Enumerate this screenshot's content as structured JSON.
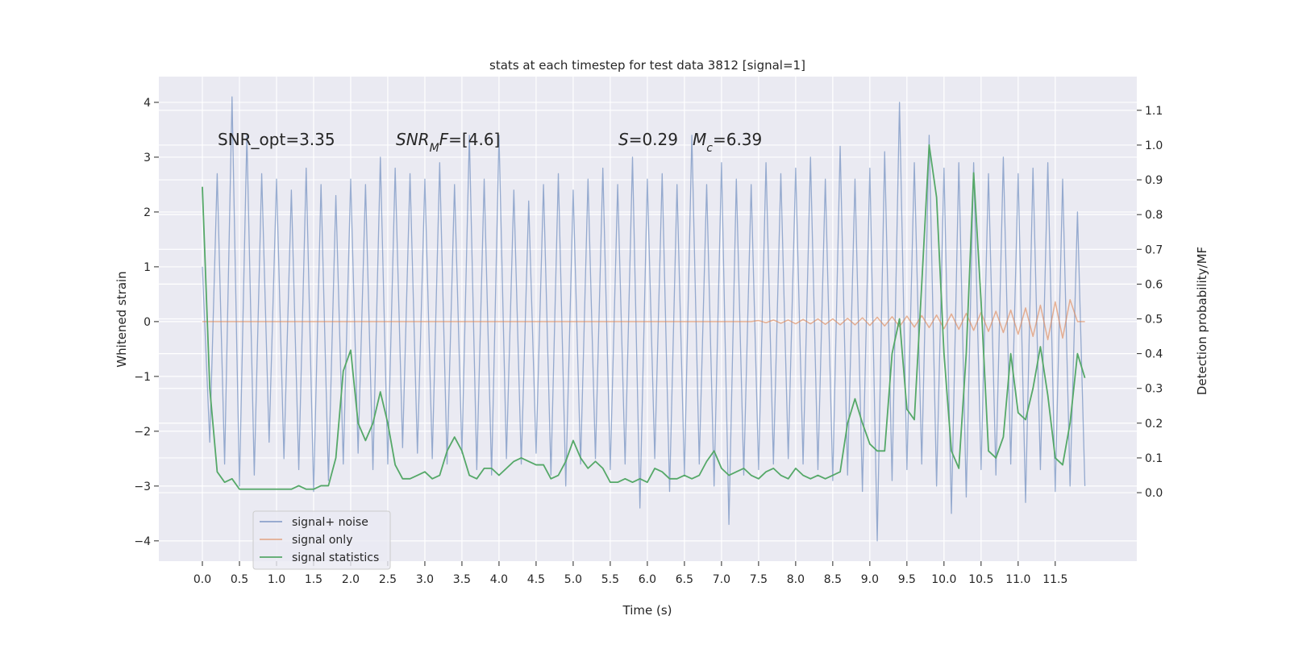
{
  "chart_data": {
    "type": "line",
    "title": "stats at each timestep for test data 3812 [signal=1]",
    "x_label": "Time (s)",
    "y_label": "Whitened strain",
    "y2_label": "Detection probability/MF",
    "annotations": [
      [
        {
          "text": "SNR_opt=3.35",
          "style": "normal"
        }
      ],
      [
        {
          "text": "SNR",
          "style": "italic"
        },
        {
          "text": "M",
          "style": "sub"
        },
        {
          "text": "F",
          "style": "italic"
        },
        {
          "text": "=[4.6]",
          "style": "normal"
        }
      ],
      [
        {
          "text": "S",
          "style": "italic"
        },
        {
          "text": "=0.29",
          "style": "normal"
        }
      ],
      [
        {
          "text": "M",
          "style": "italic"
        },
        {
          "text": "c",
          "style": "sub"
        },
        {
          "text": "=6.39",
          "style": "normal"
        }
      ]
    ],
    "x": [
      0.0,
      0.1,
      0.2,
      0.3,
      0.4,
      0.5,
      0.6,
      0.7,
      0.8,
      0.9,
      1.0,
      1.1,
      1.2,
      1.3,
      1.4,
      1.5,
      1.6,
      1.7,
      1.8,
      1.9,
      2.0,
      2.1,
      2.2,
      2.3,
      2.4,
      2.5,
      2.6,
      2.7,
      2.8,
      2.9,
      3.0,
      3.1,
      3.2,
      3.3,
      3.4,
      3.5,
      3.6,
      3.7,
      3.8,
      3.9,
      4.0,
      4.1,
      4.2,
      4.3,
      4.4,
      4.5,
      4.6,
      4.7,
      4.8,
      4.9,
      5.0,
      5.1,
      5.2,
      5.3,
      5.4,
      5.5,
      5.6,
      5.7,
      5.8,
      5.9,
      6.0,
      6.1,
      6.2,
      6.3,
      6.4,
      6.5,
      6.6,
      6.7,
      6.8,
      6.9,
      7.0,
      7.1,
      7.2,
      7.3,
      7.4,
      7.5,
      7.6,
      7.7,
      7.8,
      7.9,
      8.0,
      8.1,
      8.2,
      8.3,
      8.4,
      8.5,
      8.6,
      8.7,
      8.8,
      8.9,
      9.0,
      9.1,
      9.2,
      9.3,
      9.4,
      9.5,
      9.6,
      9.7,
      9.8,
      9.9,
      10.0,
      10.1,
      10.2,
      10.3,
      10.4,
      10.5,
      10.6,
      10.7,
      10.8,
      10.9,
      11.0,
      11.1,
      11.2,
      11.3,
      11.4,
      11.5,
      11.6,
      11.7,
      11.8,
      11.9
    ],
    "series": [
      {
        "name": "signal+ noise",
        "color": "#4c72b0",
        "axis": "y",
        "values": [
          1.0,
          -2.2,
          2.7,
          -2.6,
          4.1,
          -3.0,
          3.4,
          -2.8,
          2.7,
          -2.2,
          2.6,
          -2.5,
          2.4,
          -2.7,
          2.8,
          -3.1,
          2.5,
          -2.9,
          2.3,
          -2.6,
          2.6,
          -2.4,
          2.5,
          -2.7,
          3.0,
          -2.6,
          2.8,
          -2.3,
          2.7,
          -2.4,
          2.6,
          -2.5,
          2.9,
          -2.6,
          2.5,
          -2.4,
          3.4,
          -2.7,
          2.6,
          -2.8,
          3.4,
          -2.5,
          2.4,
          -2.6,
          2.2,
          -2.4,
          2.5,
          -2.8,
          2.7,
          -3.0,
          2.4,
          -2.6,
          2.6,
          -2.5,
          2.8,
          -2.7,
          2.5,
          -2.6,
          3.0,
          -3.4,
          2.6,
          -2.5,
          2.7,
          -3.1,
          2.5,
          -2.8,
          3.4,
          -2.6,
          2.5,
          -3.0,
          2.9,
          -3.7,
          2.6,
          -2.8,
          2.5,
          -2.7,
          2.9,
          -2.6,
          2.7,
          -2.5,
          2.8,
          -2.6,
          3.0,
          -2.7,
          2.6,
          -2.9,
          3.2,
          -2.8,
          2.6,
          -3.1,
          2.8,
          -4.0,
          3.1,
          -2.9,
          4.0,
          -2.7,
          2.9,
          -2.6,
          3.4,
          -3.0,
          2.8,
          -3.5,
          2.9,
          -3.2,
          2.9,
          -2.7,
          2.7,
          -2.8,
          3.0,
          -2.6,
          2.7,
          -3.3,
          2.8,
          -2.7,
          2.9,
          -3.1,
          2.6,
          -3.0,
          2.0,
          -3.0
        ]
      },
      {
        "name": "signal only",
        "color": "#dd8452",
        "axis": "y",
        "values": [
          0,
          0,
          0,
          0,
          0,
          0,
          0,
          0,
          0,
          0,
          0,
          0,
          0,
          0,
          0,
          0,
          0,
          0,
          0,
          0,
          0,
          0,
          0,
          0,
          0,
          0,
          0,
          0,
          0,
          0,
          0,
          0,
          0,
          0,
          0,
          0,
          0,
          0,
          0,
          0,
          0,
          0,
          0,
          0,
          0,
          0,
          0,
          0,
          0,
          0,
          0,
          0,
          0,
          0,
          0,
          0,
          0,
          0,
          0,
          0,
          0,
          0,
          0,
          0,
          0,
          0,
          0,
          0,
          0,
          0,
          0,
          0,
          0,
          0,
          0,
          0.02,
          -0.02,
          0.03,
          -0.03,
          0.03,
          -0.04,
          0.04,
          -0.04,
          0.05,
          -0.05,
          0.05,
          -0.06,
          0.06,
          -0.06,
          0.07,
          -0.07,
          0.08,
          -0.08,
          0.09,
          -0.09,
          0.1,
          -0.1,
          0.11,
          -0.11,
          0.12,
          -0.13,
          0.14,
          -0.14,
          0.15,
          -0.16,
          0.17,
          -0.18,
          0.19,
          -0.2,
          0.21,
          -0.23,
          0.25,
          -0.27,
          0.3,
          -0.33,
          0.36,
          -0.3,
          0.4,
          0,
          0
        ]
      },
      {
        "name": "signal statistics",
        "color": "#55a868",
        "axis": "y2",
        "values": [
          0.88,
          0.3,
          0.06,
          0.03,
          0.04,
          0.01,
          0.01,
          0.01,
          0.01,
          0.01,
          0.01,
          0.01,
          0.01,
          0.02,
          0.01,
          0.01,
          0.02,
          0.02,
          0.1,
          0.35,
          0.41,
          0.2,
          0.15,
          0.2,
          0.29,
          0.2,
          0.08,
          0.04,
          0.04,
          0.05,
          0.06,
          0.04,
          0.05,
          0.12,
          0.16,
          0.12,
          0.05,
          0.04,
          0.07,
          0.07,
          0.05,
          0.07,
          0.09,
          0.1,
          0.09,
          0.08,
          0.08,
          0.04,
          0.05,
          0.09,
          0.15,
          0.1,
          0.07,
          0.09,
          0.07,
          0.03,
          0.03,
          0.04,
          0.03,
          0.04,
          0.03,
          0.07,
          0.06,
          0.04,
          0.04,
          0.05,
          0.04,
          0.05,
          0.09,
          0.12,
          0.07,
          0.05,
          0.06,
          0.07,
          0.05,
          0.04,
          0.06,
          0.07,
          0.05,
          0.04,
          0.07,
          0.05,
          0.04,
          0.05,
          0.04,
          0.05,
          0.06,
          0.2,
          0.27,
          0.2,
          0.14,
          0.12,
          0.12,
          0.4,
          0.5,
          0.24,
          0.21,
          0.6,
          1.0,
          0.85,
          0.4,
          0.12,
          0.07,
          0.4,
          0.92,
          0.55,
          0.12,
          0.1,
          0.16,
          0.4,
          0.23,
          0.21,
          0.3,
          0.42,
          0.28,
          0.1,
          0.08,
          0.2,
          0.4,
          0.33
        ]
      }
    ],
    "xlim": [
      -0.587,
      12.6
    ],
    "xticks": [
      {
        "value": 0,
        "label": "0.0"
      },
      {
        "value": 0.5,
        "label": "0.5"
      },
      {
        "value": 1,
        "label": "1.0"
      },
      {
        "value": 1.5,
        "label": "1.5"
      },
      {
        "value": 2,
        "label": "2.0"
      },
      {
        "value": 2.5,
        "label": "2.5"
      },
      {
        "value": 3,
        "label": "3.0"
      },
      {
        "value": 3.5,
        "label": "3.5"
      },
      {
        "value": 4,
        "label": "4.0"
      },
      {
        "value": 4.5,
        "label": "4.5"
      },
      {
        "value": 5,
        "label": "5.0"
      },
      {
        "value": 5.5,
        "label": "5.5"
      },
      {
        "value": 6,
        "label": "6.0"
      },
      {
        "value": 6.5,
        "label": "6.5"
      },
      {
        "value": 7,
        "label": "7.0"
      },
      {
        "value": 7.5,
        "label": "7.5"
      },
      {
        "value": 8,
        "label": "8.0"
      },
      {
        "value": 8.5,
        "label": "8.5"
      },
      {
        "value": 9,
        "label": "9.0"
      },
      {
        "value": 9.5,
        "label": "9.5"
      },
      {
        "value": 10,
        "label": "10.0"
      },
      {
        "value": 10.5,
        "label": "10.5"
      },
      {
        "value": 11,
        "label": "11.0"
      },
      {
        "value": 11.5,
        "label": "11.5"
      }
    ],
    "ylim": [
      -4.37,
      4.47
    ],
    "yticks": [
      {
        "value": -4,
        "label": "−4"
      },
      {
        "value": -3,
        "label": "−3"
      },
      {
        "value": -2,
        "label": "−2"
      },
      {
        "value": -1,
        "label": "−1"
      },
      0,
      1,
      2,
      3,
      4
    ],
    "y2lim": [
      -0.197,
      1.197
    ],
    "y2ticks": [
      {
        "value": 0,
        "label": "0.0"
      },
      {
        "value": 0.1,
        "label": "0.1"
      },
      {
        "value": 0.2,
        "label": "0.2"
      },
      {
        "value": 0.3,
        "label": "0.3"
      },
      {
        "value": 0.4,
        "label": "0.4"
      },
      {
        "value": 0.5,
        "label": "0.5"
      },
      {
        "value": 0.6,
        "label": "0.6"
      },
      {
        "value": 0.7,
        "label": "0.7"
      },
      {
        "value": 0.8,
        "label": "0.8"
      },
      {
        "value": 0.9,
        "label": "0.9"
      },
      {
        "value": 1.0,
        "label": "1.0"
      },
      {
        "value": 1.1,
        "label": "1.1"
      }
    ],
    "grid": true,
    "legend": "lower left"
  }
}
